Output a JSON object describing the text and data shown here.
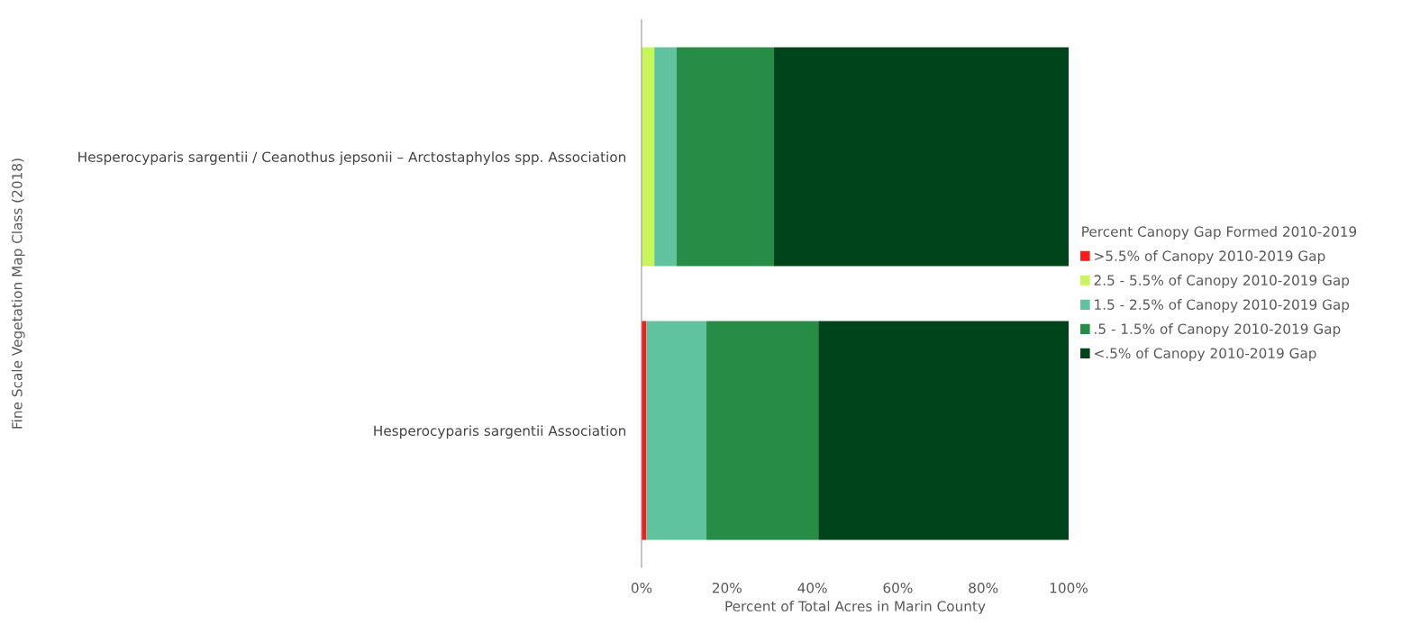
{
  "chart_data": {
    "type": "bar",
    "orientation": "horizontal",
    "stacked": true,
    "xlabel": "Percent of Total Acres in Marin County",
    "ylabel": "Fine Scale Vegetation Map Class (2018)",
    "legend_title": "Percent Canopy Gap Formed 2010-2019",
    "categories": [
      "Hesperocyparis sargentii / Ceanothus jepsonii – Arctostaphylos spp. Association",
      "Hesperocyparis sargentii Association"
    ],
    "series": [
      {
        "name": ">5.5% of Canopy 2010-2019 Gap",
        "color": "#ff1a1a",
        "values": [
          0,
          1.1
        ]
      },
      {
        "name": "2.5 - 5.5% of Canopy 2010-2019 Gap",
        "color": "#c8f55a",
        "values": [
          3.0,
          0
        ]
      },
      {
        "name": "1.5 - 2.5% of Canopy 2010-2019 Gap",
        "color": "#5fc3a0",
        "values": [
          5.2,
          14.1
        ]
      },
      {
        "name": ".5 - 1.5% of Canopy 2010-2019 Gap",
        "color": "#268c46",
        "values": [
          22.8,
          26.2
        ]
      },
      {
        "name": "<.5% of Canopy 2010-2019 Gap",
        "color": "#00441b",
        "values": [
          69.0,
          58.6
        ]
      }
    ],
    "xlim": [
      0,
      100
    ],
    "xticks": [
      {
        "value": 0,
        "label": "0%"
      },
      {
        "value": 20,
        "label": "20%"
      },
      {
        "value": 40,
        "label": "40%"
      },
      {
        "value": 60,
        "label": "60%"
      },
      {
        "value": 80,
        "label": "80%"
      },
      {
        "value": 100,
        "label": "100%"
      }
    ],
    "grid": false,
    "legend": "right"
  }
}
